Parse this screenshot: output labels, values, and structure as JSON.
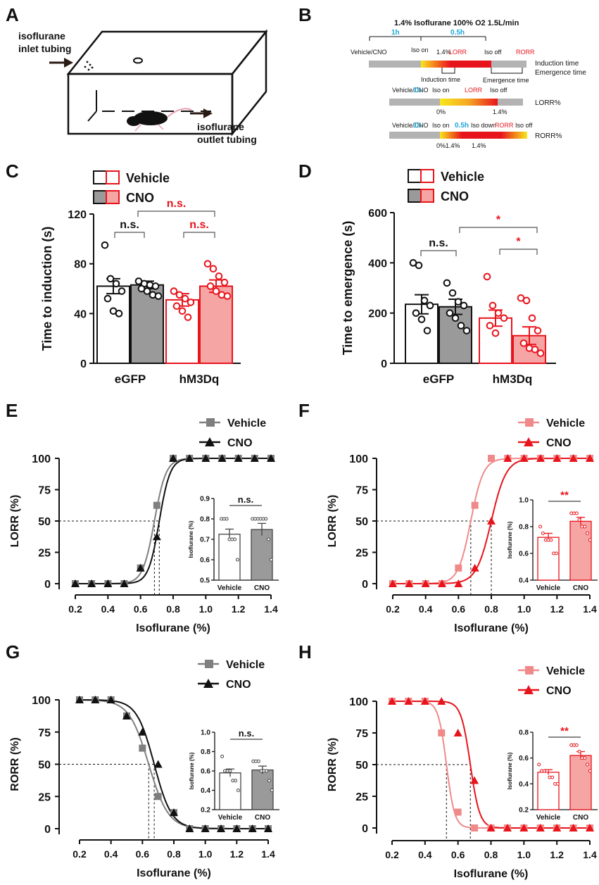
{
  "colors": {
    "black": "#111111",
    "gray": "#7f7f7f",
    "darkgray": "#6d6d6d",
    "red": "#e8141c",
    "pink": "#f08a8a",
    "lightpink": "#f6a5a5",
    "cyan": "#1ba6d8",
    "bargray": "#9a9a9a"
  },
  "panel_letters": [
    "A",
    "B",
    "C",
    "D",
    "E",
    "F",
    "G",
    "H"
  ],
  "panelA": {
    "inlet_label": "isoflurane\ninlet tubing",
    "outlet_label": "isoflurane\noutlet tubing"
  },
  "panelB": {
    "title": "1.4% Isoflurane 100% O2 1.5L/min",
    "row1": {
      "t1": "1h",
      "t2": "0.5h",
      "vehicle": "Vehicle/CNO",
      "iso_on": "Iso on",
      "pct": "1.4%",
      "lorr": "LORR",
      "iso_off": "Iso off",
      "rorr": "RORR",
      "right1": "Induction time",
      "right2": "Emergence time",
      "induction": "Induction time",
      "emergence": "Emergence time"
    },
    "row2": {
      "vehicle": "Vehicle/CNO",
      "t1": "1h",
      "iso_on": "Iso on",
      "lorr": "LORR",
      "iso_off": "Iso off",
      "p0": "0%",
      "p14": "1.4%",
      "right": "LORR%"
    },
    "row3": {
      "vehicle": "Vehicle/CNO",
      "t1": "1h",
      "iso_on": "Iso on",
      "t2": "0.5h",
      "iso_down": "Iso down",
      "rorr": "RORR",
      "iso_off": "Iso off",
      "p0": "0%",
      "p14a": "1.4%",
      "p14b": "1.4%",
      "right": "RORR%"
    }
  },
  "chart_data": [
    {
      "panel": "C",
      "type": "bar",
      "ylabel": "Time to induction (s)",
      "ylim": [
        0,
        120
      ],
      "yticks": [
        0,
        40,
        80,
        120
      ],
      "categories": [
        "eGFP",
        "hM3Dq"
      ],
      "legend": [
        "Vehicle",
        "CNO"
      ],
      "series": [
        {
          "name": "Vehicle",
          "values": [
            62,
            51
          ],
          "sem": [
            6,
            5
          ]
        },
        {
          "name": "CNO",
          "values": [
            63,
            62
          ],
          "sem": [
            3,
            5
          ]
        }
      ],
      "points": [
        [
          95,
          68,
          64,
          58,
          52,
          42,
          40
        ],
        [
          66,
          64,
          63,
          62,
          60,
          58,
          55,
          54
        ],
        [
          58,
          55,
          52,
          49,
          46,
          42,
          37
        ],
        [
          80,
          76,
          70,
          65,
          62,
          58,
          55,
          54
        ]
      ],
      "annotations": [
        "n.s.",
        "n.s.",
        "n.s."
      ]
    },
    {
      "panel": "D",
      "type": "bar",
      "ylabel": "Time to emergence (s)",
      "ylim": [
        0,
        600
      ],
      "yticks": [
        0,
        200,
        400,
        600
      ],
      "categories": [
        "eGFP",
        "hM3Dq"
      ],
      "legend": [
        "Vehicle",
        "CNO"
      ],
      "series": [
        {
          "name": "Vehicle",
          "values": [
            235,
            180
          ],
          "sem": [
            38,
            32
          ]
        },
        {
          "name": "CNO",
          "values": [
            225,
            110
          ],
          "sem": [
            30,
            35
          ]
        }
      ],
      "points": [
        [
          400,
          390,
          250,
          230,
          200,
          175,
          130
        ],
        [
          320,
          280,
          245,
          230,
          200,
          180,
          150,
          130
        ],
        [
          345,
          230,
          200,
          180,
          150,
          120
        ],
        [
          260,
          250,
          180,
          130,
          80,
          60,
          55,
          40
        ]
      ],
      "annotations": [
        "n.s.",
        "*",
        "*"
      ]
    },
    {
      "panel": "E",
      "type": "line",
      "ylabel": "LORR (%)",
      "xlabel": "Isoflurane (%)",
      "xlim": [
        0.2,
        1.4
      ],
      "ylim": [
        0,
        100
      ],
      "xticks": [
        0.2,
        0.4,
        0.6,
        0.8,
        1.0,
        1.2,
        1.4
      ],
      "yticks": [
        0,
        25,
        50,
        75,
        100
      ],
      "legend": [
        "Vehicle",
        "CNO"
      ],
      "series": [
        {
          "name": "Vehicle",
          "ec50": 0.685,
          "hill": 28,
          "x": [
            0.2,
            0.3,
            0.4,
            0.5,
            0.6,
            0.7,
            0.8,
            0.9,
            1.0,
            1.1,
            1.2,
            1.3,
            1.4
          ],
          "y": [
            0,
            0,
            0,
            0,
            12.5,
            62.5,
            100,
            100,
            100,
            100,
            100,
            100,
            100
          ]
        },
        {
          "name": "CNO",
          "ec50": 0.715,
          "hill": 30,
          "x": [
            0.2,
            0.3,
            0.4,
            0.5,
            0.6,
            0.7,
            0.8,
            0.9,
            1.0,
            1.1,
            1.2,
            1.3,
            1.4
          ],
          "y": [
            0,
            0,
            0,
            0,
            12.5,
            37.5,
            100,
            100,
            100,
            100,
            100,
            100,
            100
          ]
        }
      ],
      "inset": {
        "ylabel": "Isoflurane (%)",
        "ylim": [
          0.5,
          0.9
        ],
        "yticks": [
          0.5,
          0.6,
          0.7,
          0.8,
          0.9
        ],
        "categories": [
          "Vehicle",
          "CNO"
        ],
        "values": [
          0.725,
          0.748
        ],
        "sem": [
          0.025,
          0.03
        ],
        "points": [
          [
            0.8,
            0.8,
            0.8,
            0.7,
            0.7,
            0.7,
            0.6
          ],
          [
            0.8,
            0.8,
            0.8,
            0.8,
            0.8,
            0.8,
            0.7,
            0.6
          ]
        ],
        "annotation": "n.s."
      }
    },
    {
      "panel": "F",
      "type": "line",
      "ylabel": "LORR (%)",
      "xlabel": "Isoflurane (%)",
      "xlim": [
        0.2,
        1.4
      ],
      "ylim": [
        0,
        100
      ],
      "xticks": [
        0.2,
        0.4,
        0.6,
        0.8,
        1.0,
        1.2,
        1.4
      ],
      "yticks": [
        0,
        25,
        50,
        75,
        100
      ],
      "legend": [
        "Vehicle",
        "CNO"
      ],
      "series": [
        {
          "name": "Vehicle",
          "ec50": 0.675,
          "hill": 26,
          "x": [
            0.2,
            0.3,
            0.4,
            0.5,
            0.6,
            0.7,
            0.8,
            0.9,
            1.0,
            1.1,
            1.2,
            1.3,
            1.4
          ],
          "y": [
            0,
            0,
            0,
            0,
            12.5,
            62.5,
            100,
            100,
            100,
            100,
            100,
            100,
            100
          ]
        },
        {
          "name": "CNO",
          "ec50": 0.8,
          "hill": 22,
          "x": [
            0.2,
            0.3,
            0.4,
            0.5,
            0.6,
            0.7,
            0.8,
            0.9,
            1.0,
            1.1,
            1.2,
            1.3,
            1.4
          ],
          "y": [
            0,
            0,
            0,
            0,
            0,
            12.5,
            50,
            100,
            100,
            100,
            100,
            100,
            100
          ]
        }
      ],
      "inset": {
        "ylabel": "Isoflurane (%)",
        "ylim": [
          0.4,
          1.0
        ],
        "yticks": [
          0.4,
          0.6,
          0.8,
          1.0
        ],
        "categories": [
          "Vehicle",
          "CNO"
        ],
        "values": [
          0.72,
          0.84
        ],
        "sem": [
          0.03,
          0.03
        ],
        "points": [
          [
            0.8,
            0.75,
            0.7,
            0.7,
            0.7,
            0.6,
            0.6
          ],
          [
            0.9,
            0.9,
            0.9,
            0.85,
            0.8,
            0.8,
            0.75,
            0.7
          ]
        ],
        "annotation": "**"
      }
    },
    {
      "panel": "G",
      "type": "line",
      "ylabel": "RORR (%)",
      "xlabel": "Isoflurane (%)",
      "xlim": [
        0.2,
        1.4
      ],
      "ylim": [
        0,
        100
      ],
      "xticks": [
        0.2,
        0.4,
        0.6,
        0.8,
        1.0,
        1.2,
        1.4
      ],
      "yticks": [
        0,
        25,
        50,
        75,
        100
      ],
      "legend": [
        "Vehicle",
        "CNO"
      ],
      "series": [
        {
          "name": "Vehicle",
          "ec50": 0.64,
          "hill": -16,
          "x": [
            0.2,
            0.3,
            0.4,
            0.5,
            0.6,
            0.7,
            0.8,
            0.9,
            1.0,
            1.1,
            1.2,
            1.3,
            1.4
          ],
          "y": [
            100,
            100,
            100,
            87.5,
            62.5,
            25,
            12.5,
            0,
            0,
            0,
            0,
            0,
            0
          ]
        },
        {
          "name": "CNO",
          "ec50": 0.675,
          "hill": -18,
          "x": [
            0.2,
            0.3,
            0.4,
            0.5,
            0.6,
            0.7,
            0.8,
            0.9,
            1.0,
            1.1,
            1.2,
            1.3,
            1.4
          ],
          "y": [
            100,
            100,
            100,
            87.5,
            75,
            50,
            12.5,
            0,
            0,
            0,
            0,
            0,
            0
          ]
        }
      ],
      "inset": {
        "ylabel": "Isoflurane (%)",
        "ylim": [
          0.2,
          1.0
        ],
        "yticks": [
          0.2,
          0.4,
          0.6,
          0.8,
          1.0
        ],
        "categories": [
          "Vehicle",
          "CNO"
        ],
        "values": [
          0.58,
          0.61
        ],
        "sem": [
          0.04,
          0.04
        ],
        "points": [
          [
            0.75,
            0.6,
            0.6,
            0.6,
            0.5,
            0.5,
            0.4
          ],
          [
            0.7,
            0.7,
            0.7,
            0.6,
            0.6,
            0.6,
            0.5,
            0.4
          ]
        ],
        "annotation": "n.s."
      }
    },
    {
      "panel": "H",
      "type": "line",
      "ylabel": "RORR (%)",
      "xlabel": "Isoflurane (%)",
      "xlim": [
        0.2,
        1.4
      ],
      "ylim": [
        0,
        100
      ],
      "xticks": [
        0.2,
        0.4,
        0.6,
        0.8,
        1.0,
        1.2,
        1.4
      ],
      "yticks": [
        0,
        25,
        50,
        75,
        100
      ],
      "legend": [
        "Vehicle",
        "CNO"
      ],
      "series": [
        {
          "name": "Vehicle",
          "ec50": 0.53,
          "hill": -40,
          "x": [
            0.2,
            0.3,
            0.4,
            0.5,
            0.6,
            0.7,
            0.8,
            0.9,
            1.0,
            1.1,
            1.2,
            1.3,
            1.4
          ],
          "y": [
            100,
            100,
            100,
            75,
            12.5,
            0,
            0,
            0,
            0,
            0,
            0,
            0,
            0
          ]
        },
        {
          "name": "CNO",
          "ec50": 0.675,
          "hill": -35,
          "x": [
            0.2,
            0.3,
            0.4,
            0.5,
            0.6,
            0.7,
            0.8,
            0.9,
            1.0,
            1.1,
            1.2,
            1.3,
            1.4
          ],
          "y": [
            100,
            100,
            100,
            100,
            75,
            37.5,
            0,
            0,
            0,
            0,
            0,
            0,
            0
          ]
        }
      ],
      "inset": {
        "ylabel": "Isoflurane (%)",
        "ylim": [
          0.2,
          0.8
        ],
        "yticks": [
          0.2,
          0.4,
          0.6,
          0.8
        ],
        "categories": [
          "Vehicle",
          "CNO"
        ],
        "values": [
          0.49,
          0.62
        ],
        "sem": [
          0.02,
          0.03
        ],
        "points": [
          [
            0.55,
            0.5,
            0.5,
            0.5,
            0.45,
            0.45,
            0.4,
            0.4
          ],
          [
            0.7,
            0.7,
            0.7,
            0.65,
            0.6,
            0.6,
            0.55,
            0.5
          ]
        ],
        "annotation": "**"
      }
    }
  ]
}
